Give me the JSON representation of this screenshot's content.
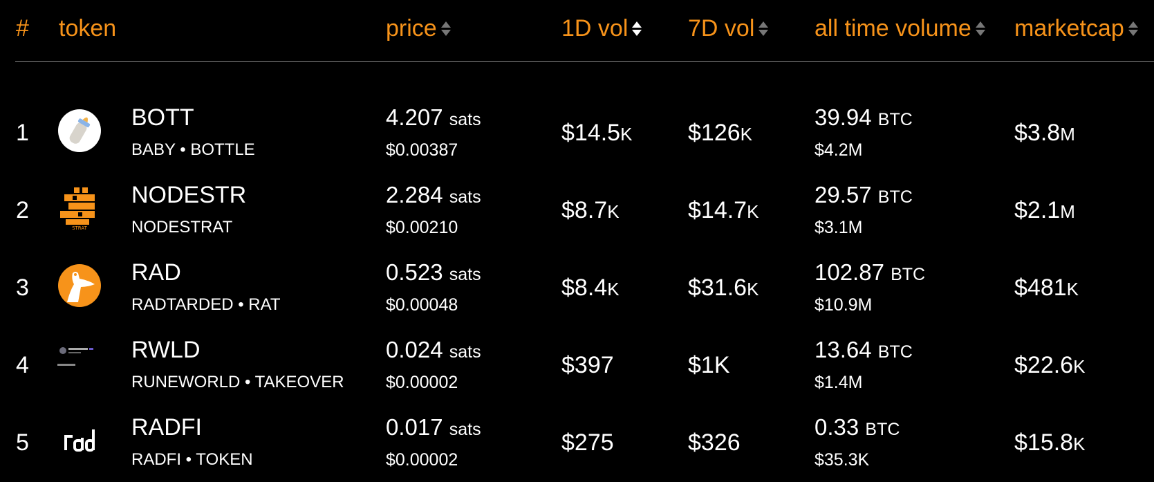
{
  "header": {
    "rank": "#",
    "token": "token",
    "price": "price",
    "vol_1d": "1D vol",
    "vol_7d": "7D vol",
    "all_time_volume": "all time volume",
    "marketcap": "marketcap"
  },
  "colors": {
    "accent": "#f7931a",
    "background": "#000000",
    "text": "#ffffff"
  },
  "rows": [
    {
      "rank": "1",
      "icon": "baby-bottle-icon",
      "symbol": "BOTT",
      "name": "BABY • BOTTLE",
      "price_sats": "4.207",
      "price_unit": "sats",
      "price_usd": "$0.00387",
      "vol_1d": "$14.5",
      "vol_1d_sfx": "K",
      "vol_7d": "$126",
      "vol_7d_sfx": "K",
      "atv_btc": "39.94",
      "atv_unit": "BTC",
      "atv_usd": "$4.2M",
      "mcap": "$3.8",
      "mcap_sfx": "M"
    },
    {
      "rank": "2",
      "icon": "nodestrat-logo-icon",
      "symbol": "NODESTR",
      "name": "NODESTRAT",
      "price_sats": "2.284",
      "price_unit": "sats",
      "price_usd": "$0.00210",
      "vol_1d": "$8.7",
      "vol_1d_sfx": "K",
      "vol_7d": "$14.7",
      "vol_7d_sfx": "K",
      "atv_btc": "29.57",
      "atv_unit": "BTC",
      "atv_usd": "$3.1M",
      "mcap": "$2.1",
      "mcap_sfx": "M"
    },
    {
      "rank": "3",
      "icon": "rat-silhouette-icon",
      "symbol": "RAD",
      "name": "RADTARDED • RAT",
      "price_sats": "0.523",
      "price_unit": "sats",
      "price_usd": "$0.00048",
      "vol_1d": "$8.4",
      "vol_1d_sfx": "K",
      "vol_7d": "$31.6",
      "vol_7d_sfx": "K",
      "atv_btc": "102.87",
      "atv_unit": "BTC",
      "atv_usd": "$10.9M",
      "mcap": "$481",
      "mcap_sfx": "K"
    },
    {
      "rank": "4",
      "icon": "tweet-screenshot-icon",
      "symbol": "RWLD",
      "name": "RUNEWORLD • TAKEOVER",
      "price_sats": "0.024",
      "price_unit": "sats",
      "price_usd": "$0.00002",
      "vol_1d": "$397",
      "vol_1d_sfx": "",
      "vol_7d": "$1K",
      "vol_7d_sfx": "",
      "atv_btc": "13.64",
      "atv_unit": "BTC",
      "atv_usd": "$1.4M",
      "mcap": "$22.6",
      "mcap_sfx": "K"
    },
    {
      "rank": "5",
      "icon": "rad-text-logo-icon",
      "symbol": "RADFI",
      "name": "RADFI • TOKEN",
      "price_sats": "0.017",
      "price_unit": "sats",
      "price_usd": "$0.00002",
      "vol_1d": "$275",
      "vol_1d_sfx": "",
      "vol_7d": "$326",
      "vol_7d_sfx": "",
      "atv_btc": "0.33",
      "atv_unit": "BTC",
      "atv_usd": "$35.3K",
      "mcap": "$15.8",
      "mcap_sfx": "K"
    }
  ]
}
